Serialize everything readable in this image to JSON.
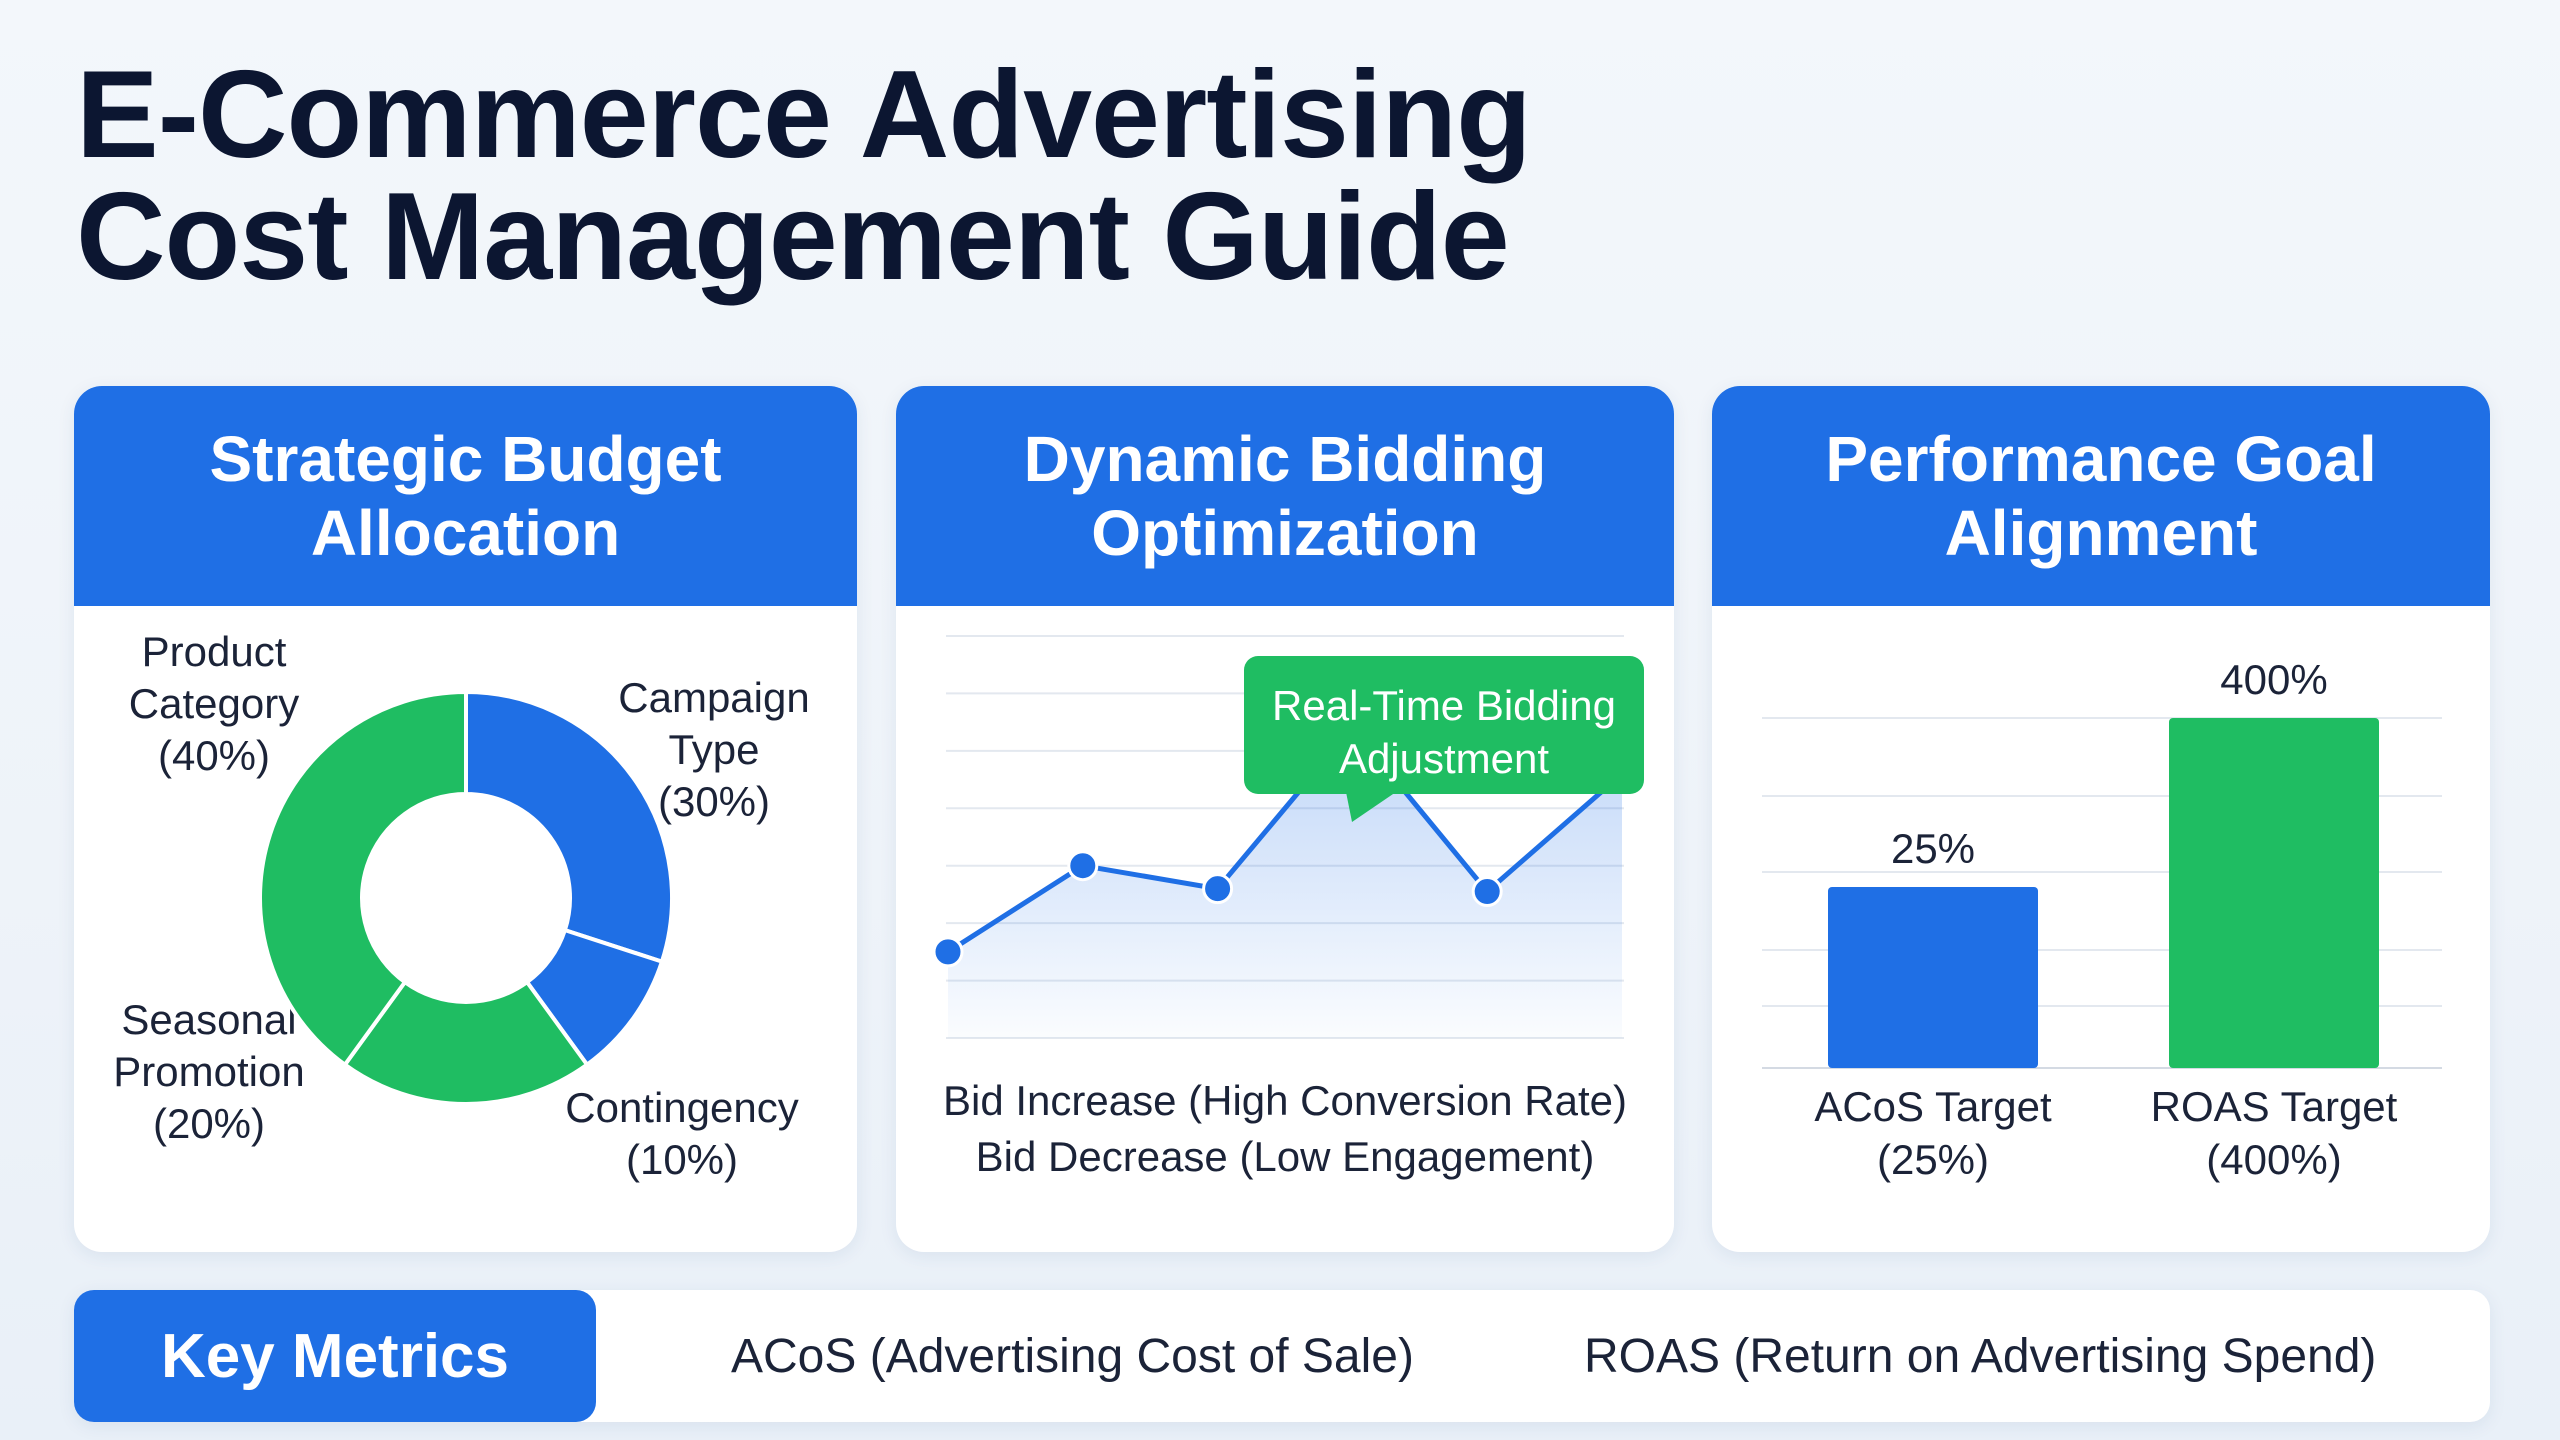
{
  "title": {
    "line1": "E-Commerce Advertising",
    "line2": "Cost Management Guide"
  },
  "panels": [
    {
      "header": [
        "Strategic Budget",
        "Allocation"
      ]
    },
    {
      "header": [
        "Dynamic Bidding",
        "Optimization"
      ],
      "callout": [
        "Real-Time Bidding",
        "Adjustment"
      ],
      "captions": [
        "Bid Increase (High Conversion Rate)",
        "Bid Decrease (Low Engagement)"
      ]
    },
    {
      "header": [
        "Performance Goal",
        "Alignment"
      ]
    }
  ],
  "metrics": {
    "badge": "Key Metrics",
    "items": [
      "ACoS (Advertising Cost of Sale)",
      "ROAS (Return on Advertising Spend)"
    ]
  },
  "colors": {
    "primary_blue": "#1f6fe5",
    "accent_green": "#1fbd62",
    "title_navy": "#0c1631"
  },
  "chart_data": [
    {
      "type": "pie",
      "donut": true,
      "slices": [
        {
          "label": [
            "Campaign",
            "Type",
            "(30%)"
          ],
          "value": 30,
          "color": "#1f6fe5"
        },
        {
          "label": [
            "Contingency",
            "(10%)"
          ],
          "value": 10,
          "color": "#1f6fe5"
        },
        {
          "label": [
            "Seasonal",
            "Promotion",
            "(20%)"
          ],
          "value": 20,
          "color": "#1fbd62"
        },
        {
          "label": [
            "Product",
            "Category",
            "(40%)"
          ],
          "value": 40,
          "color": "#1fbd62"
        }
      ]
    },
    {
      "type": "area",
      "x": [
        1,
        2,
        3,
        4,
        5,
        6
      ],
      "values": [
        1.5,
        3.0,
        2.6,
        5.4,
        2.55,
        4.6
      ],
      "ylim": [
        0,
        7
      ],
      "grid": true,
      "line_color": "#1f6fe5"
    },
    {
      "type": "bar",
      "categories": [
        "ACoS Target (25%)",
        "ROAS Target (400%)"
      ],
      "category_lines": [
        [
          "ACoS Target",
          "(25%)"
        ],
        [
          "ROAS Target",
          "(400%)"
        ]
      ],
      "values": [
        25,
        400
      ],
      "value_labels": [
        "25%",
        "400%"
      ],
      "colors": [
        "#1f6fe5",
        "#1fbd62"
      ],
      "grid": true
    }
  ]
}
